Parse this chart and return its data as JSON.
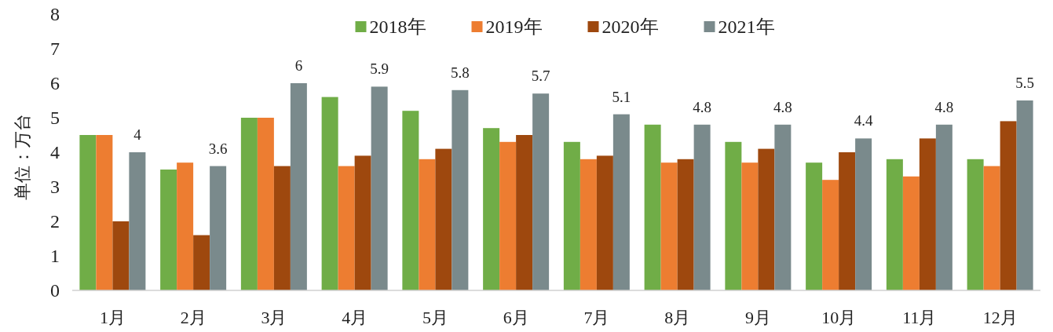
{
  "chart_data": {
    "type": "bar",
    "ylabel": "单位：万台",
    "categories": [
      "1月",
      "2月",
      "3月",
      "4月",
      "5月",
      "6月",
      "7月",
      "8月",
      "9月",
      "10月",
      "11月",
      "12月"
    ],
    "series": [
      {
        "name": "2018年",
        "color": "#70ad47",
        "values": [
          4.5,
          3.5,
          5.0,
          5.6,
          5.2,
          4.7,
          4.3,
          4.8,
          4.3,
          3.7,
          3.8,
          3.8
        ]
      },
      {
        "name": "2019年",
        "color": "#ed7d31",
        "values": [
          4.5,
          3.7,
          5.0,
          3.6,
          3.8,
          4.3,
          3.8,
          3.7,
          3.7,
          3.2,
          3.3,
          3.6
        ]
      },
      {
        "name": "2020年",
        "color": "#9e480e",
        "values": [
          2.0,
          1.6,
          3.6,
          3.9,
          4.1,
          4.5,
          3.9,
          3.8,
          4.1,
          4.0,
          4.4,
          4.9
        ]
      },
      {
        "name": "2021年",
        "color": "#7a8a8c",
        "values": [
          4,
          3.6,
          6,
          5.9,
          5.8,
          5.7,
          5.1,
          4.8,
          4.8,
          4.4,
          4.8,
          5.5
        ],
        "value_labels": [
          "4",
          "3.6",
          "6",
          "5.9",
          "5.8",
          "5.7",
          "5.1",
          "4.8",
          "4.8",
          "4.4",
          "4.8",
          "5.5"
        ]
      }
    ],
    "ylim": [
      0,
      8
    ],
    "yticks": [
      0,
      1,
      2,
      3,
      4,
      5,
      6,
      7,
      8
    ],
    "grid": false,
    "legend": "top"
  }
}
